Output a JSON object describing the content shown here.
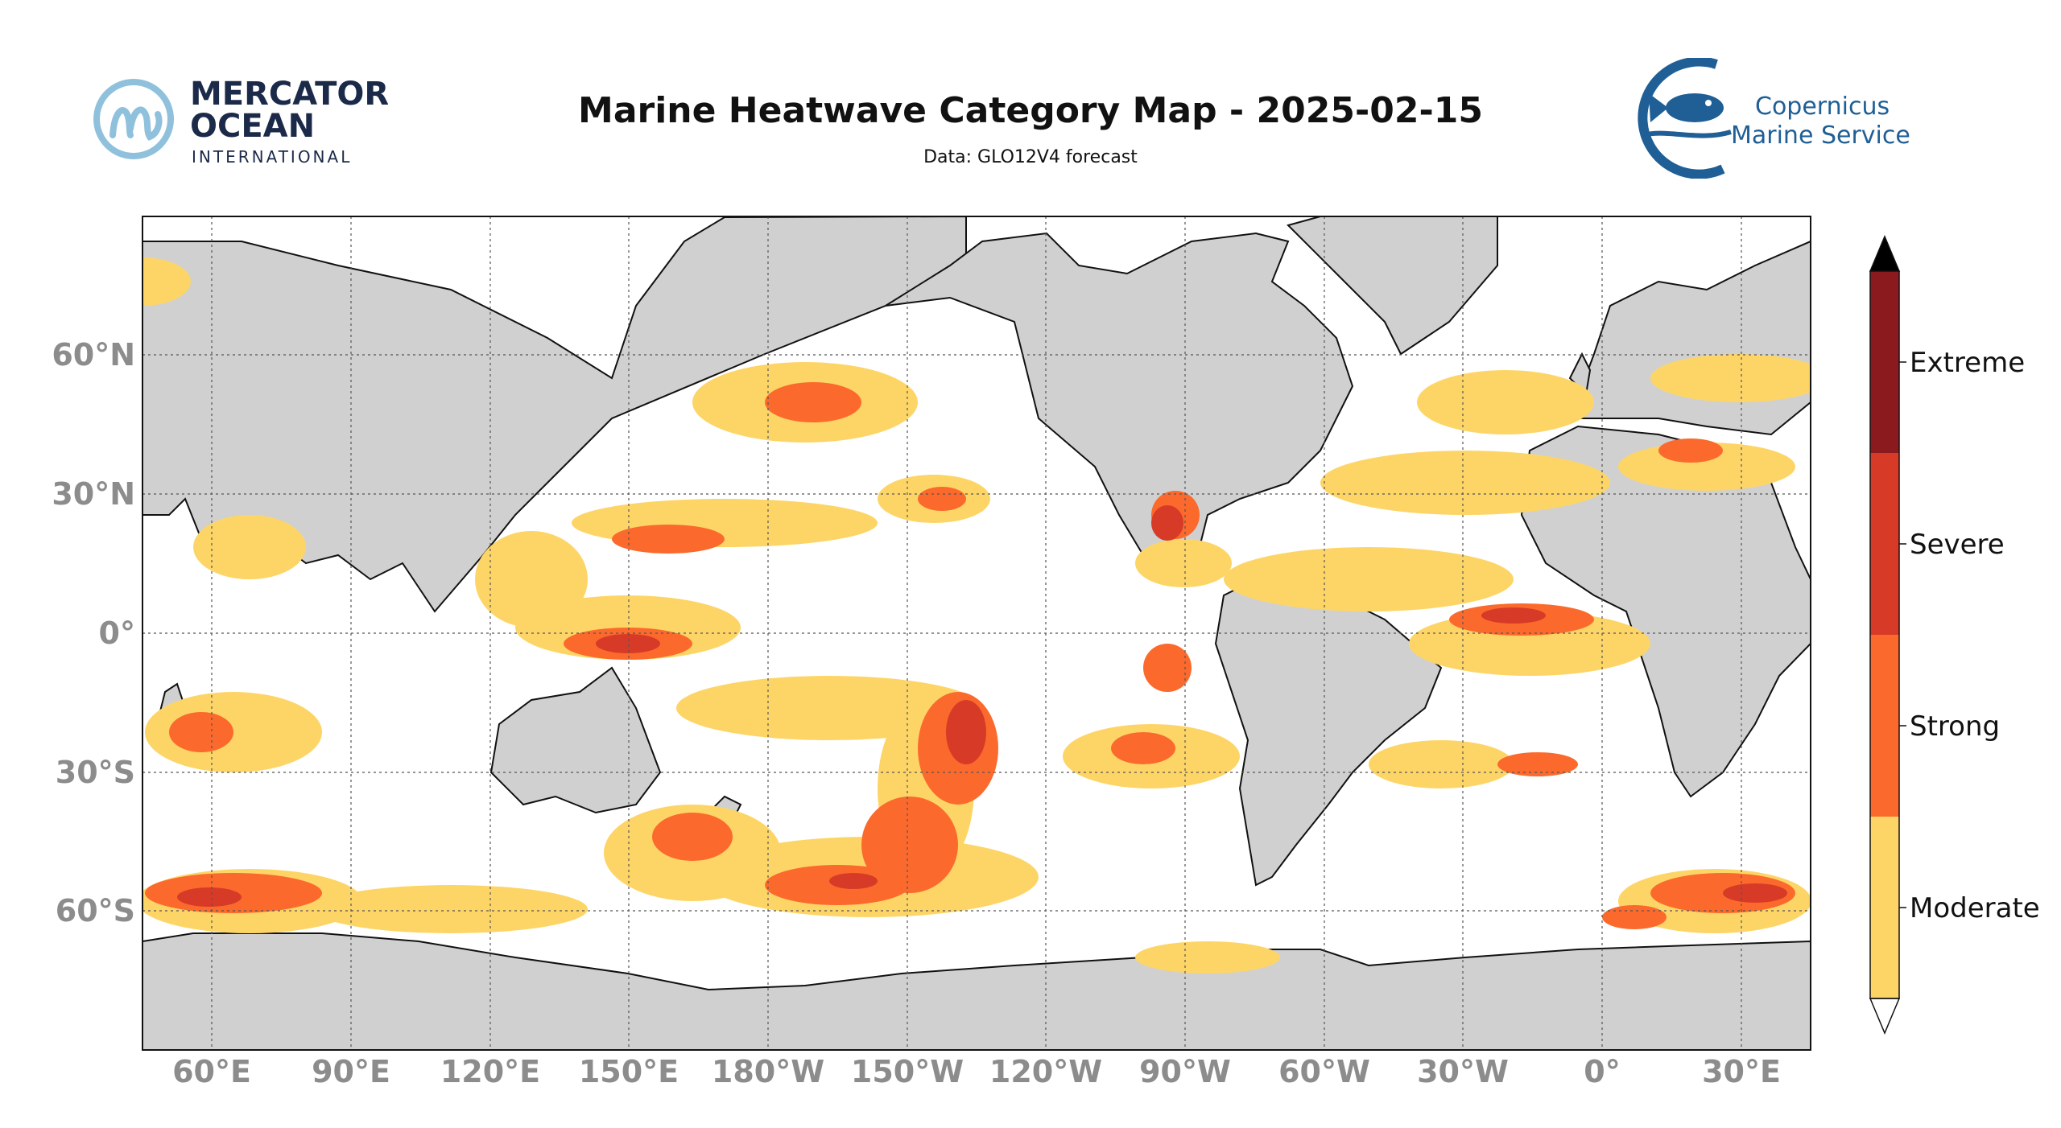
{
  "header": {
    "title": "Marine Heatwave Category Map - 2025-02-15",
    "subtitle": "Data: GLO12V4 forecast"
  },
  "logos": {
    "mercator": {
      "line1": "MERCATOR",
      "line2": "OCEAN",
      "line3": "INTERNATIONAL",
      "color": "#1c2a4a",
      "mark_color": "#8fc1dd"
    },
    "copernicus": {
      "line1": "Copernicus",
      "line2": "Marine Service",
      "color": "#1f5f96"
    }
  },
  "map": {
    "projection": "Plate Carree, central longitude ~150°W",
    "lat_labels": [
      "60°N",
      "30°N",
      "0°",
      "30°S",
      "60°S"
    ],
    "lon_labels": [
      "60°E",
      "90°E",
      "120°E",
      "150°E",
      "180°W",
      "150°W",
      "120°W",
      "90°W",
      "60°W",
      "30°W",
      "0°",
      "30°E"
    ],
    "land_color": "#d0d0d0",
    "ocean_color": "#ffffff",
    "grid": "dotted"
  },
  "colorbar": {
    "categories": [
      {
        "label": "Moderate",
        "color": "#fdd567"
      },
      {
        "label": "Strong",
        "color": "#fb6a2c"
      },
      {
        "label": "Severe",
        "color": "#d73b27"
      },
      {
        "label": "Extreme",
        "color": "#8b1a1f"
      }
    ],
    "over_color": "#000000",
    "under_color": "#ffffff"
  }
}
